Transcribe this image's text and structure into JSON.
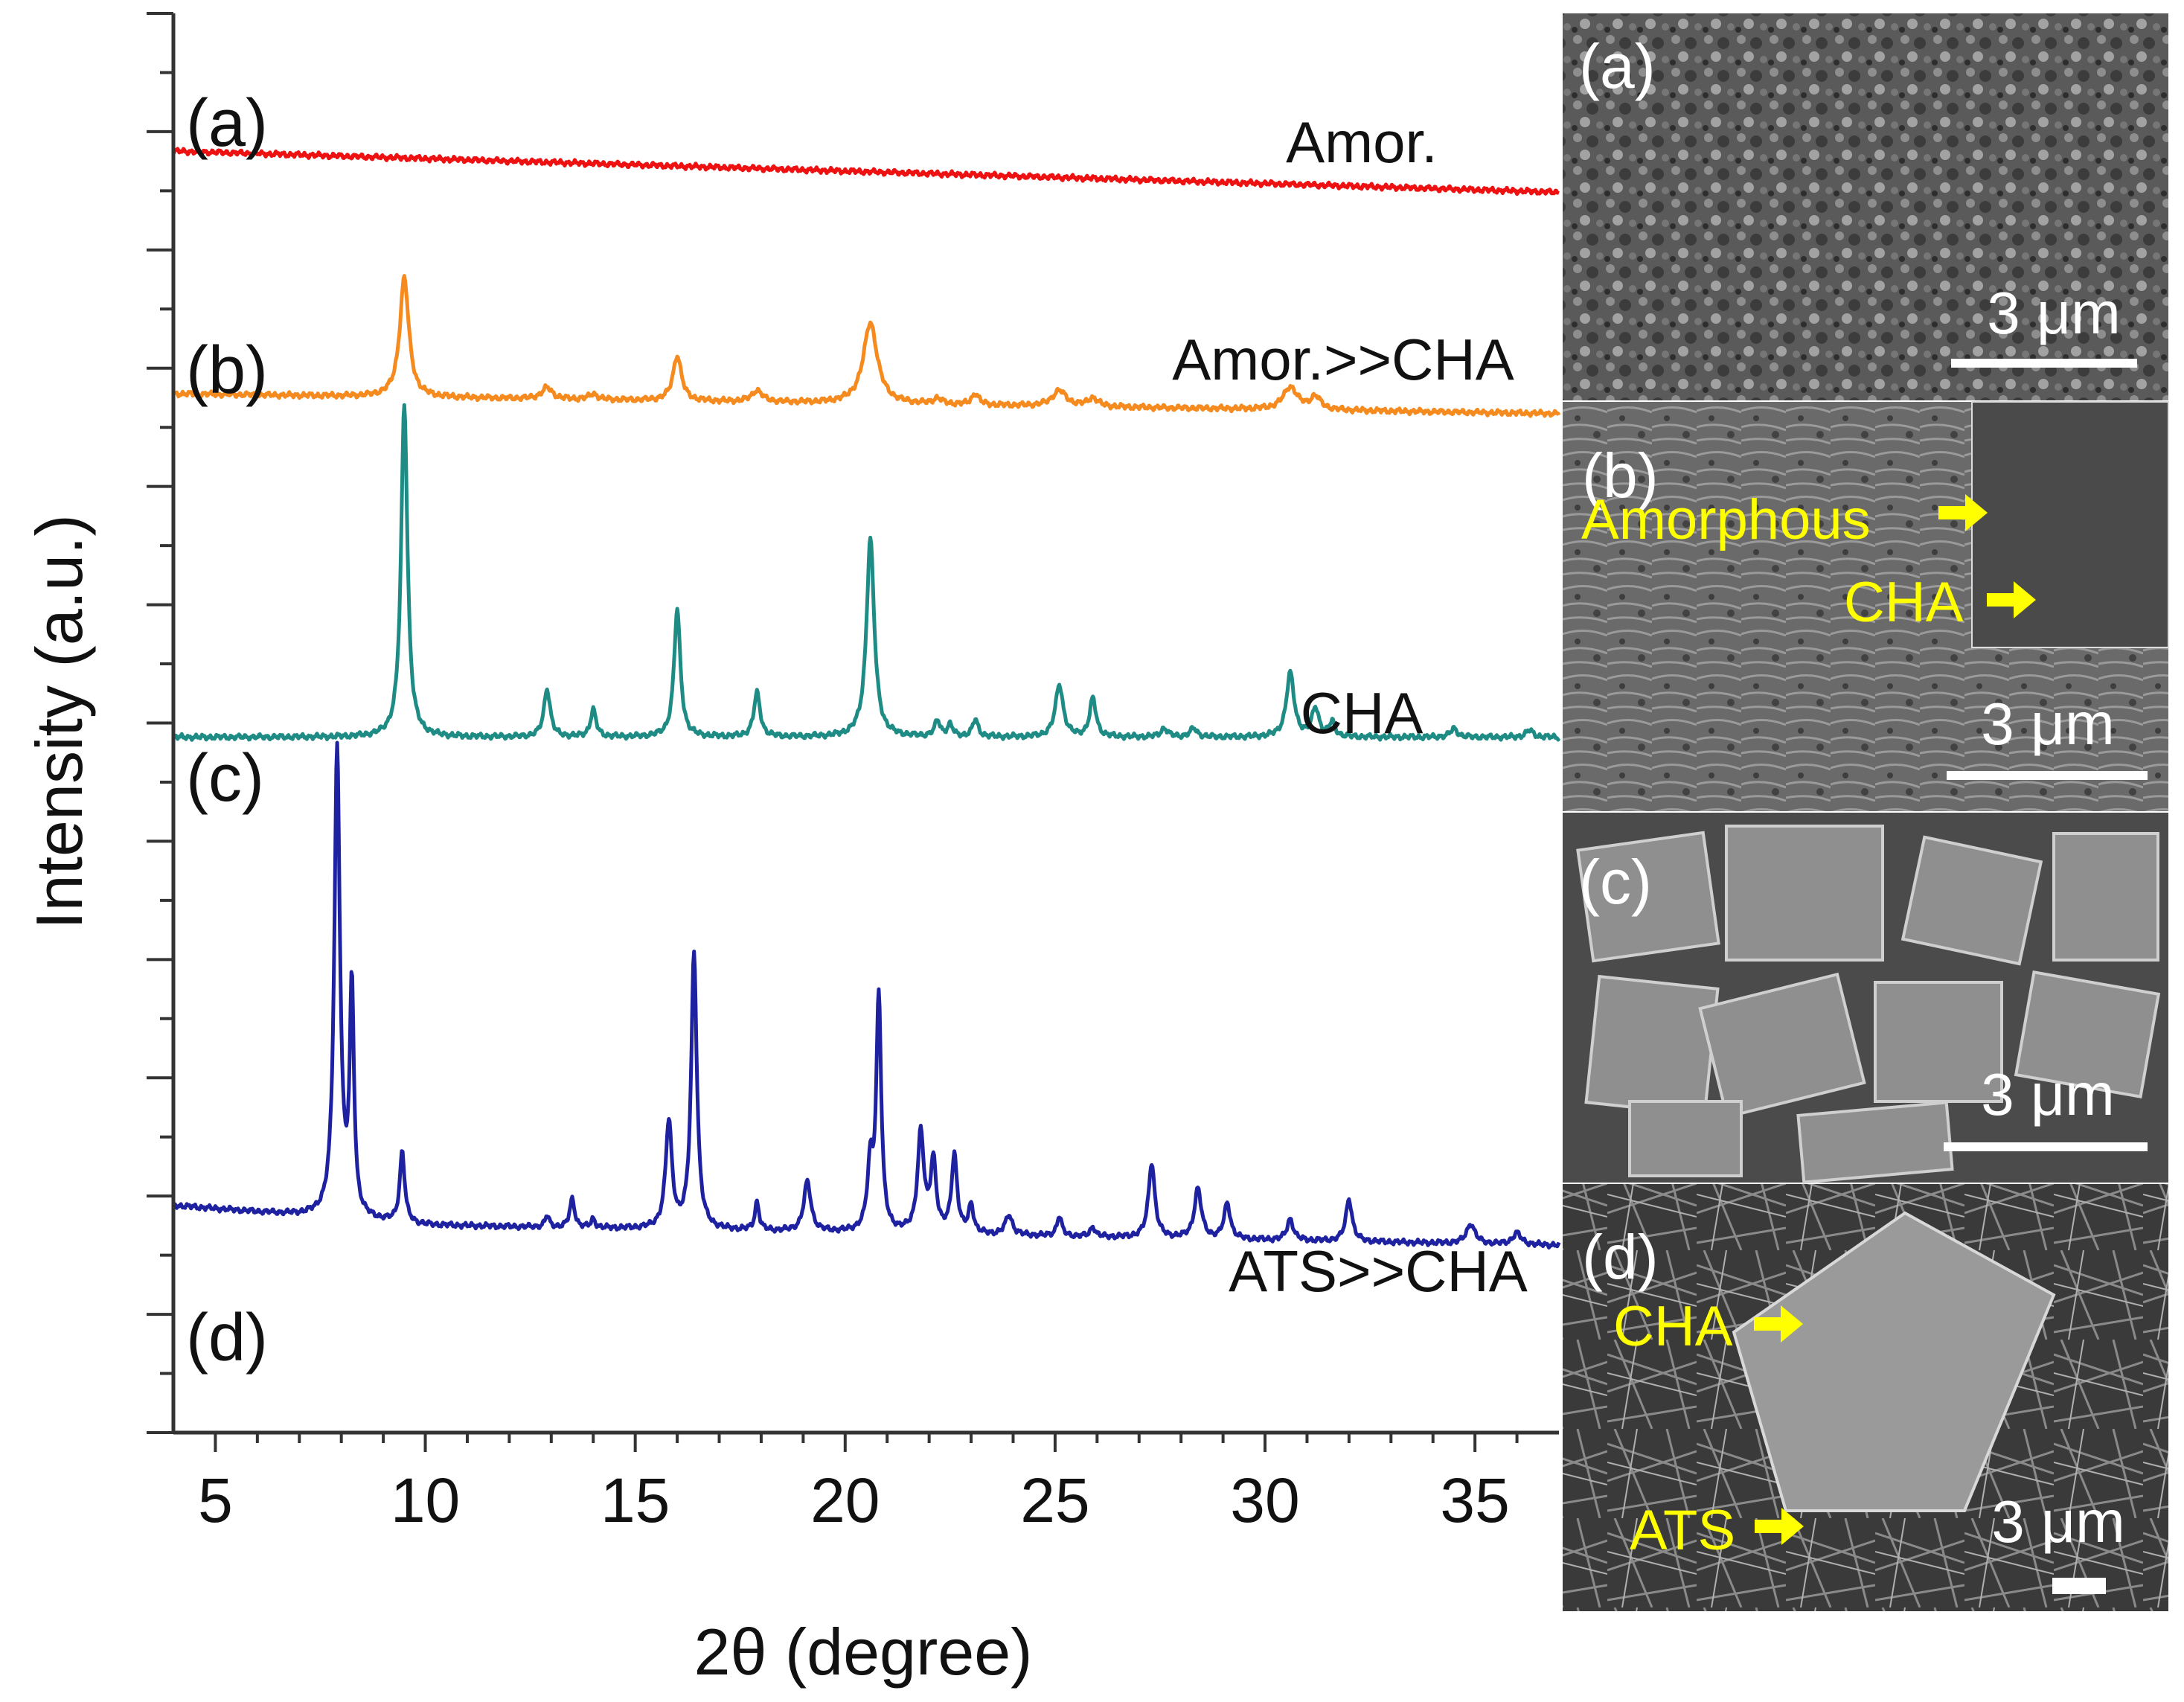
{
  "chart_data": {
    "type": "line",
    "xlabel": "2θ (degree)",
    "ylabel": "Intensity (a.u.)",
    "xlim": [
      4,
      37
    ],
    "x_ticks": [
      5,
      10,
      15,
      20,
      25,
      30,
      35
    ],
    "y_ticks_shown": false,
    "grid": false,
    "series": [
      {
        "id": "a",
        "panel_label": "(a)",
        "name": "Amor.",
        "color": "#ee1111",
        "baseline": [
          [
            4,
            0.903
          ],
          [
            37,
            0.874
          ]
        ],
        "peaks": []
      },
      {
        "id": "b",
        "panel_label": "(b)",
        "name": "Amor.>>CHA",
        "color": "#f58a1f",
        "baseline": [
          [
            4,
            0.732
          ],
          [
            37,
            0.718
          ]
        ],
        "peaks": [
          [
            9.5,
            0.084,
            0.13
          ],
          [
            12.9,
            0.008,
            0.15
          ],
          [
            14.0,
            0.004,
            0.12
          ],
          [
            16.0,
            0.032,
            0.12
          ],
          [
            17.9,
            0.008,
            0.15
          ],
          [
            20.6,
            0.057,
            0.2
          ],
          [
            22.2,
            0.004,
            0.12
          ],
          [
            23.1,
            0.008,
            0.1
          ],
          [
            25.1,
            0.011,
            0.2
          ],
          [
            25.9,
            0.006,
            0.15
          ],
          [
            30.6,
            0.016,
            0.2
          ],
          [
            31.2,
            0.009,
            0.15
          ]
        ]
      },
      {
        "id": "c",
        "panel_label": "(c)",
        "name": "CHA",
        "color": "#1f8b85",
        "baseline": [
          [
            4,
            0.49
          ],
          [
            37,
            0.49
          ]
        ],
        "peaks": [
          [
            9.5,
            0.235,
            0.09
          ],
          [
            12.9,
            0.034,
            0.09
          ],
          [
            14.0,
            0.019,
            0.08
          ],
          [
            16.0,
            0.09,
            0.09
          ],
          [
            17.9,
            0.031,
            0.09
          ],
          [
            20.6,
            0.14,
            0.11
          ],
          [
            22.2,
            0.011,
            0.08
          ],
          [
            22.5,
            0.008,
            0.08
          ],
          [
            23.1,
            0.012,
            0.08
          ],
          [
            25.1,
            0.037,
            0.11
          ],
          [
            25.9,
            0.027,
            0.09
          ],
          [
            27.6,
            0.006,
            0.1
          ],
          [
            28.3,
            0.006,
            0.1
          ],
          [
            30.6,
            0.045,
            0.11
          ],
          [
            31.2,
            0.02,
            0.1
          ],
          [
            31.6,
            0.01,
            0.08
          ],
          [
            34.5,
            0.006,
            0.1
          ],
          [
            36.3,
            0.005,
            0.1
          ]
        ]
      },
      {
        "id": "d",
        "panel_label": "(d)",
        "name": "ATS>>CHA",
        "color": "#1f22a0",
        "baseline": [
          [
            4,
            0.16
          ],
          [
            10,
            0.146
          ],
          [
            37,
            0.132
          ]
        ],
        "peaks": [
          [
            7.9,
            0.33,
            0.08
          ],
          [
            8.25,
            0.16,
            0.06
          ],
          [
            9.45,
            0.05,
            0.07
          ],
          [
            12.9,
            0.008,
            0.06
          ],
          [
            13.5,
            0.02,
            0.07
          ],
          [
            14.0,
            0.006,
            0.06
          ],
          [
            15.8,
            0.075,
            0.09
          ],
          [
            16.4,
            0.195,
            0.08
          ],
          [
            17.9,
            0.02,
            0.06
          ],
          [
            19.1,
            0.035,
            0.1
          ],
          [
            20.6,
            0.045,
            0.08
          ],
          [
            20.8,
            0.165,
            0.07
          ],
          [
            21.8,
            0.07,
            0.09
          ],
          [
            22.1,
            0.05,
            0.08
          ],
          [
            22.6,
            0.055,
            0.08
          ],
          [
            23.0,
            0.02,
            0.07
          ],
          [
            23.9,
            0.014,
            0.1
          ],
          [
            25.1,
            0.014,
            0.07
          ],
          [
            25.9,
            0.007,
            0.07
          ],
          [
            27.3,
            0.053,
            0.09
          ],
          [
            28.4,
            0.035,
            0.1
          ],
          [
            29.1,
            0.025,
            0.09
          ],
          [
            30.6,
            0.015,
            0.09
          ],
          [
            32.0,
            0.03,
            0.09
          ],
          [
            34.9,
            0.014,
            0.12
          ],
          [
            36.0,
            0.008,
            0.12
          ]
        ]
      }
    ]
  },
  "sem_panels": [
    {
      "id": "a",
      "label": "(a)",
      "scale_bar": "3 μm",
      "annotations": []
    },
    {
      "id": "b",
      "label": "(b)",
      "scale_bar": "3 μm",
      "annotations": [
        {
          "text": "Amorphous"
        },
        {
          "text": "CHA"
        }
      ]
    },
    {
      "id": "c",
      "label": "(c)",
      "scale_bar": "3 μm",
      "annotations": []
    },
    {
      "id": "d",
      "label": "(d)",
      "scale_bar": "3 μm",
      "annotations": [
        {
          "text": "CHA"
        },
        {
          "text": "ATS"
        }
      ]
    }
  ]
}
